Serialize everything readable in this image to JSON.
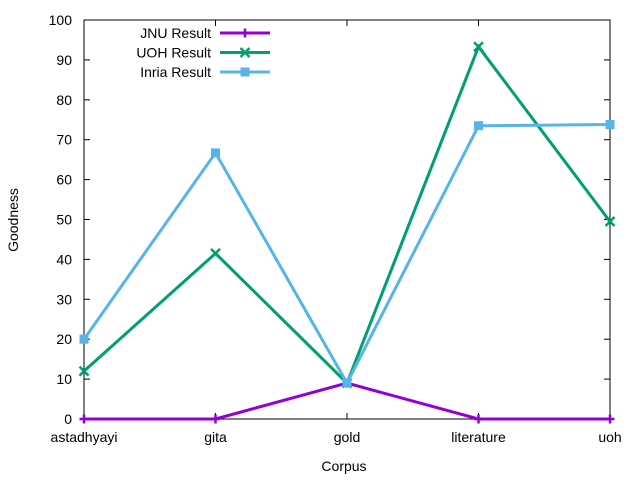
{
  "chart_data": {
    "type": "line",
    "title": "",
    "xlabel": "Corpus",
    "ylabel": "Goodness",
    "categories": [
      "astadhyayi",
      "gita",
      "gold",
      "literature",
      "uoh"
    ],
    "ylim": [
      0,
      100
    ],
    "yticks": [
      0,
      10,
      20,
      30,
      40,
      50,
      60,
      70,
      80,
      90,
      100
    ],
    "grid": false,
    "legend_position": "top-left",
    "series": [
      {
        "name": "JNU Result",
        "color": "#9400d3",
        "marker": "plus",
        "values": [
          0,
          0,
          9,
          0,
          0
        ]
      },
      {
        "name": "UOH Result",
        "color": "#009e73",
        "marker": "cross",
        "values": [
          12,
          41.5,
          9,
          93.3,
          49.5
        ]
      },
      {
        "name": "Inria Result",
        "color": "#56b4e9",
        "marker": "square",
        "values": [
          20,
          66.7,
          9,
          73.5,
          73.8
        ]
      }
    ]
  }
}
